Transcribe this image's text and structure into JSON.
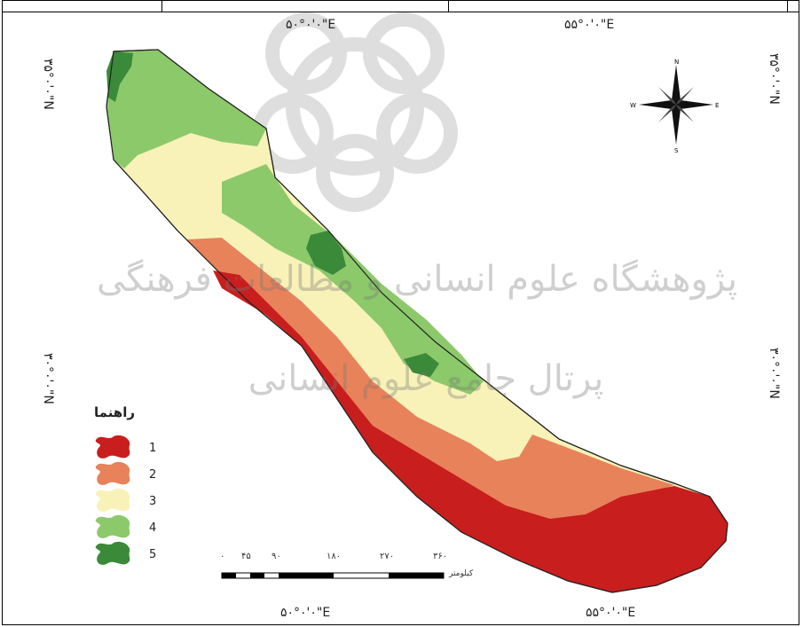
{
  "map": {
    "coords": {
      "top_left": "۵۰°۰'۰\"E",
      "top_right": "۵۵°۰'۰\"E",
      "bottom_left": "۵۰°۰'۰\"E",
      "bottom_right": "۵۵°۰'۰\"E",
      "left_top": "۳۵°۰'۰\"N",
      "left_bottom": "۳۰°۰'۰\"N",
      "right_top": "۳۵°۰'۰\"N",
      "right_bottom": "۳۰°۰'۰\"N"
    },
    "compass": {
      "n": "N",
      "s": "S",
      "e": "E",
      "w": "W"
    },
    "legend": {
      "title": "راهنما",
      "items": [
        {
          "label": "1",
          "color": "#c81e1e"
        },
        {
          "label": "2",
          "color": "#e8825a"
        },
        {
          "label": "3",
          "color": "#f8f2b8"
        },
        {
          "label": "4",
          "color": "#8cc96a"
        },
        {
          "label": "5",
          "color": "#3a8a3a"
        }
      ]
    },
    "scale": {
      "ticks": [
        "۰",
        "۴۵",
        "۹۰",
        "۱۸۰",
        "۲۷۰",
        "۳۶۰"
      ],
      "unit": "کیلومتر"
    },
    "watermark": {
      "line1": "پژوهشگاه علوم انسانی و مطالعات فرهنگی",
      "line2": "پرتال جامع علوم انسانی"
    }
  }
}
